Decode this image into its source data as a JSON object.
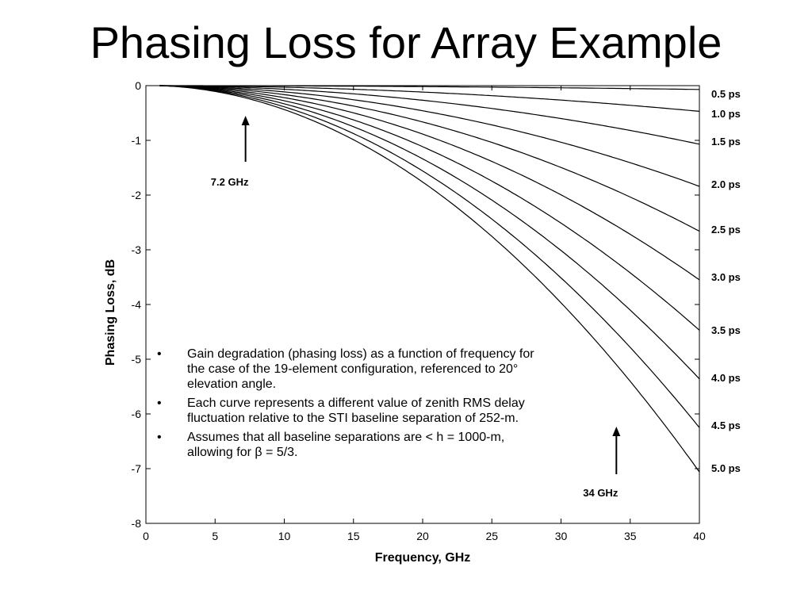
{
  "slide": {
    "title": "Phasing Loss for Array Example"
  },
  "notes": [
    "Gain degradation (phasing loss) as a function of frequency for the case of the 19-element configuration, referenced to 20° elevation angle.",
    "Each curve represents a different value of zenith RMS delay fluctuation relative to the STI baseline separation of 252-m.",
    "Assumes that all baseline separations are <  h = 1000-m, allowing for β = 5/3."
  ],
  "chart_data": {
    "type": "line",
    "xlabel": "Frequency, GHz",
    "ylabel": "Phasing Loss, dB",
    "xlim": [
      0,
      40
    ],
    "ylim": [
      -8,
      0
    ],
    "xticks": [
      0,
      5,
      10,
      15,
      20,
      25,
      30,
      35,
      40
    ],
    "yticks": [
      0,
      -1,
      -2,
      -3,
      -4,
      -5,
      -6,
      -7,
      -8
    ],
    "grid": false,
    "line_color": "#000000",
    "series": [
      {
        "name": "0.5 ps",
        "x0": 1,
        "y_at_40": -0.07
      },
      {
        "name": "1.0 ps",
        "x0": 1,
        "y_at_40": -0.47
      },
      {
        "name": "1.5 ps",
        "x0": 1,
        "y_at_40": -1.07
      },
      {
        "name": "2.0 ps",
        "x0": 1,
        "y_at_40": -1.84
      },
      {
        "name": "2.5 ps",
        "x0": 1,
        "y_at_40": -2.66
      },
      {
        "name": "3.0 ps",
        "x0": 1,
        "y_at_40": -3.55
      },
      {
        "name": "3.5 ps",
        "x0": 1,
        "y_at_40": -4.47
      },
      {
        "name": "4.0 ps",
        "x0": 1,
        "y_at_40": -5.36
      },
      {
        "name": "4.5 ps",
        "x0": 1,
        "y_at_40": -6.25
      },
      {
        "name": "5.0 ps",
        "x0": 1,
        "y_at_40": -7.06
      }
    ],
    "annotations": [
      {
        "text": "7.2 GHz",
        "x": 7.2,
        "arrow": "up"
      },
      {
        "text": "34 GHz",
        "x": 34,
        "arrow": "up"
      }
    ]
  }
}
